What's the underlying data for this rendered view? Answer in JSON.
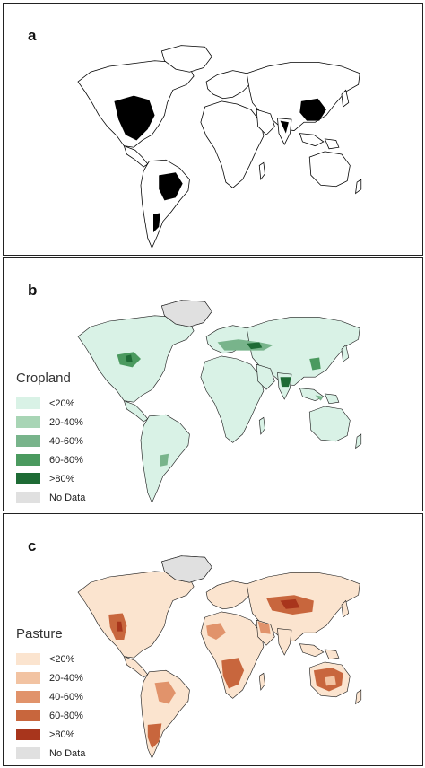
{
  "panels": [
    {
      "letter": "a"
    },
    {
      "letter": "b",
      "legend": {
        "title": "Cropland",
        "items": [
          {
            "label": "<20%",
            "color": "#d9f2e6"
          },
          {
            "label": "20-40%",
            "color": "#a8d5b5"
          },
          {
            "label": "40-60%",
            "color": "#78b48b"
          },
          {
            "label": "60-80%",
            "color": "#4b9a5f"
          },
          {
            "label": ">80%",
            "color": "#1e6b35"
          },
          {
            "label": "No Data",
            "color": "#e0e0e0"
          }
        ]
      }
    },
    {
      "letter": "c",
      "legend": {
        "title": "Pasture",
        "items": [
          {
            "label": "<20%",
            "color": "#fbe4cf"
          },
          {
            "label": "20-40%",
            "color": "#f2c3a2"
          },
          {
            "label": "40-60%",
            "color": "#e1936b"
          },
          {
            "label": "60-80%",
            "color": "#c8663d"
          },
          {
            "label": ">80%",
            "color": "#a8351c"
          },
          {
            "label": "No Data",
            "color": "#e0e0e0"
          }
        ]
      }
    }
  ],
  "maps": {
    "a": {
      "land_color": "#ffffff",
      "dense_color": "#000000"
    },
    "b": {
      "land_color": "#d9f2e6",
      "nodata_color": "#e0e0e0"
    },
    "c": {
      "land_color": "#fbe4cf",
      "nodata_color": "#e0e0e0"
    }
  }
}
